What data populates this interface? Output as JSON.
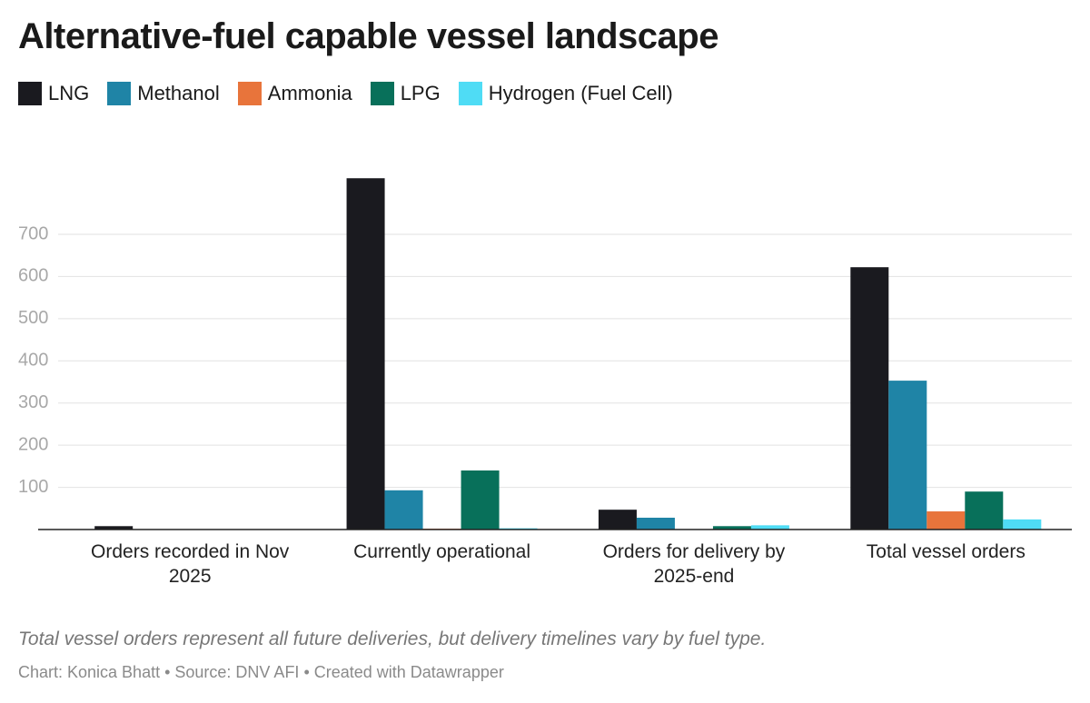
{
  "chart_data": {
    "type": "bar",
    "title": "Alternative-fuel capable vessel landscape",
    "categories": [
      "Orders recorded in Nov 2025",
      "Currently operational",
      "Orders for delivery by 2025-end",
      "Total vessel orders"
    ],
    "series": [
      {
        "name": "LNG",
        "color": "#1a1a1f",
        "values": [
          8,
          833,
          47,
          622
        ]
      },
      {
        "name": "Methanol",
        "color": "#1f84a6",
        "values": [
          0,
          93,
          28,
          353
        ]
      },
      {
        "name": "Ammonia",
        "color": "#e8743b",
        "values": [
          0,
          2,
          0,
          43
        ]
      },
      {
        "name": "LPG",
        "color": "#08705a",
        "values": [
          0,
          140,
          8,
          90
        ]
      },
      {
        "name": "Hydrogen (Fuel Cell)",
        "color": "#4fdcf5",
        "values": [
          0,
          3,
          10,
          24
        ]
      }
    ],
    "ylim": [
      0,
      850
    ],
    "yticks": [
      100,
      200,
      300,
      400,
      500,
      600,
      700
    ],
    "grid": true,
    "note": "Total vessel orders represent all future deliveries, but delivery timelines vary by fuel type.",
    "credit": "Chart: Konica Bhatt • Source: DNV AFI • Created with Datawrapper"
  }
}
